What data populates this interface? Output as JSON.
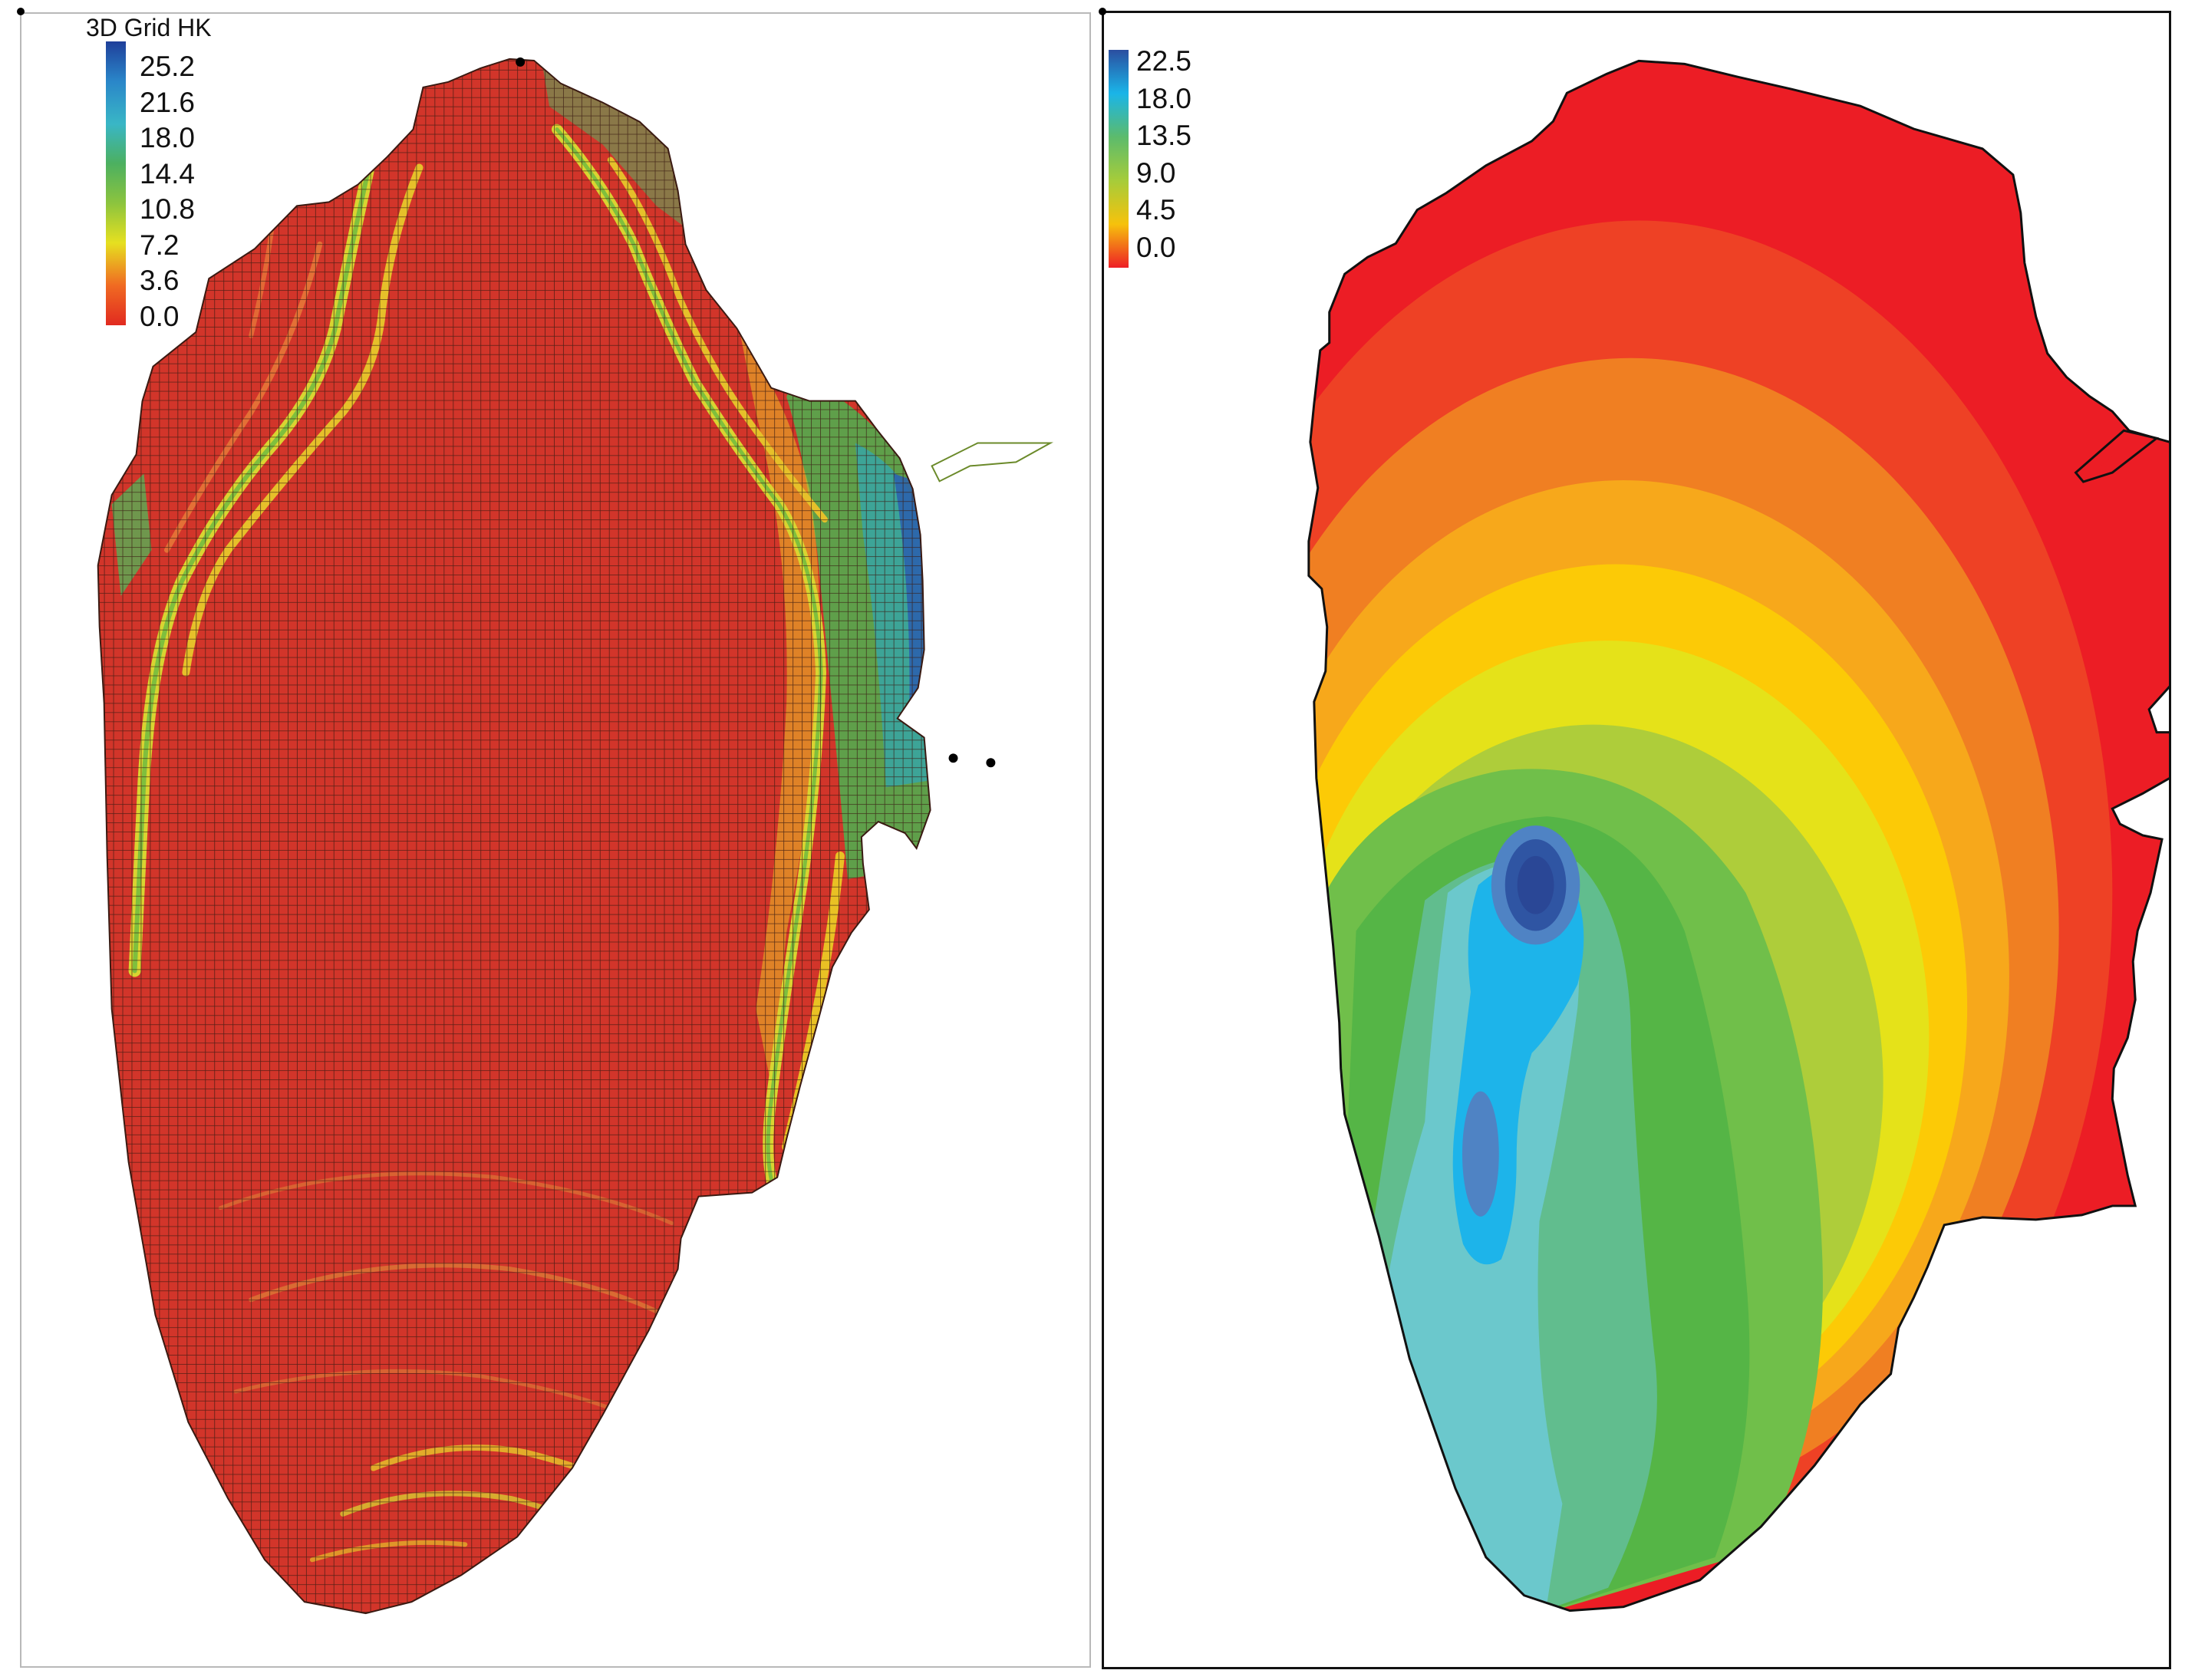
{
  "left_panel": {
    "legend_title": "3D Grid HK",
    "legend_labels": [
      "25.2",
      "21.6",
      "18.0",
      "14.4",
      "10.8",
      "7.2",
      "3.6",
      "0.0"
    ],
    "legend_colors": [
      "#1f3f9a",
      "#2a86c9",
      "#39b6c6",
      "#4cb060",
      "#8cc43e",
      "#e6e020",
      "#f06a22",
      "#e12a20"
    ],
    "fill_color": "#d2352a",
    "grid_line_color": "#3a1a12"
  },
  "right_panel": {
    "legend_labels": [
      "22.5",
      "18.0",
      "13.5",
      "9.0",
      "4.5",
      "0.0"
    ],
    "legend_colors": [
      "#2b4ea0",
      "#1ab5e8",
      "#5cbb6c",
      "#a6cc3a",
      "#f6c20c",
      "#ee1f26"
    ],
    "contour_colors": [
      "#ec1d25",
      "#ee4125",
      "#f07f22",
      "#f7a81b",
      "#fcca06",
      "#e5e219",
      "#aecd3a",
      "#70bf4a",
      "#55b546",
      "#61bd8e",
      "#6bc8cc",
      "#1db4ea",
      "#4f83c4",
      "#2f55a3"
    ]
  }
}
